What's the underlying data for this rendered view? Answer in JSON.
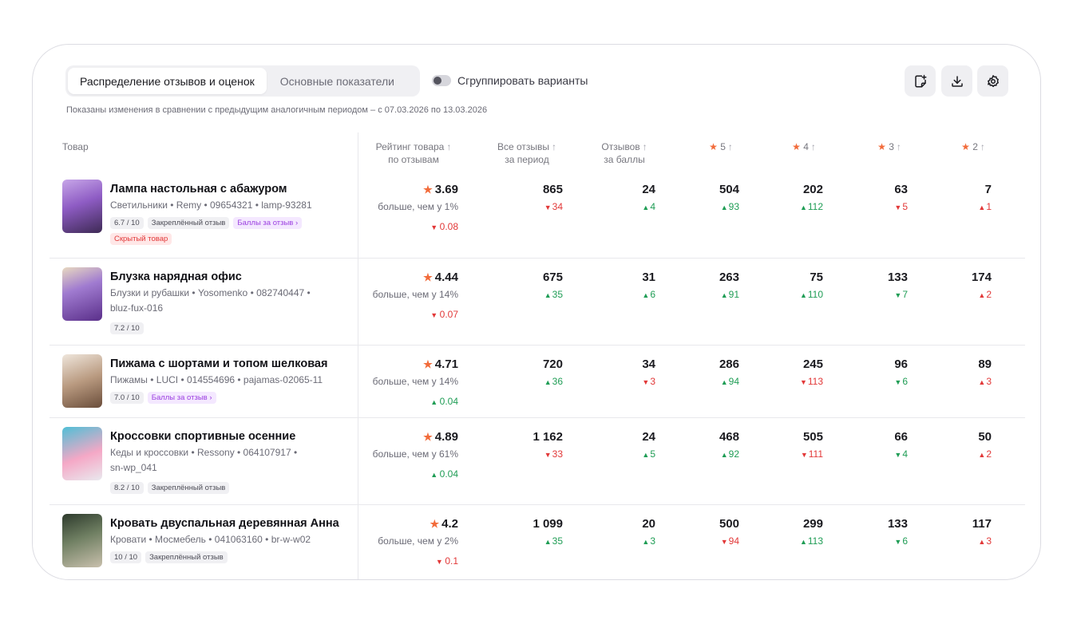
{
  "tabs": [
    {
      "label": "Распределение отзывов и оценок",
      "active": true
    },
    {
      "label": "Основные показатели",
      "active": false
    }
  ],
  "toggle": {
    "label": "Сгруппировать варианты",
    "on": false
  },
  "toolbar_icons": [
    "sticker-add-icon",
    "download-icon",
    "settings-gear-icon"
  ],
  "note": "Показаны изменения в сравнении с предыдущим аналогичным периодом – с 07.03.2026 по 13.03.2026",
  "columns": {
    "product": "Товар",
    "rating_l1": "Рейтинг товара",
    "rating_l2": "по отзывам",
    "all_l1": "Все отзывы",
    "all_l2": "за период",
    "points_l1": "Отзывов",
    "points_l2": "за баллы",
    "s5": "5",
    "s4": "4",
    "s3": "3",
    "s2": "2"
  },
  "colors": {
    "accent_star": "#f26b3a",
    "up": "#1f9d55",
    "down": "#e23838",
    "purple_chip": "#9b3fe0"
  },
  "rows": [
    {
      "name": "Лампа настольная с абажуром",
      "meta1": "Светильники • Remy • 09654321 • lamp-93281",
      "meta2": "",
      "chips": [
        {
          "text": "6.7 / 10",
          "kind": "grey"
        },
        {
          "text": "Закреплённый отзыв",
          "kind": "grey"
        },
        {
          "text": "Баллы за отзыв ›",
          "kind": "purple"
        }
      ],
      "chips2": [
        {
          "text": "Скрытый товар",
          "kind": "red"
        }
      ],
      "rating": "3.69",
      "compare": "больше, чем у 1%",
      "rating_delta": {
        "dir": "down",
        "value": "0.08"
      },
      "all": {
        "value": "865",
        "dir": "down",
        "delta": "34"
      },
      "points": {
        "value": "24",
        "dir": "up",
        "delta": "4"
      },
      "s5": {
        "value": "504",
        "dir": "up",
        "delta": "93"
      },
      "s4": {
        "value": "202",
        "dir": "up",
        "delta": "112"
      },
      "s3": {
        "value": "63",
        "dir": "down",
        "delta": "5"
      },
      "s2": {
        "value": "7",
        "dir": "up_red",
        "delta": "1"
      }
    },
    {
      "name": "Блузка нарядная офис",
      "meta1": "Блузки и рубашки • Yosomenko • 082740447 •",
      "meta2": "bluz-fux-016",
      "chips": [
        {
          "text": "7.2 / 10",
          "kind": "grey"
        }
      ],
      "chips2": [],
      "rating": "4.44",
      "compare": "больше, чем у 14%",
      "rating_delta": {
        "dir": "down",
        "value": "0.07"
      },
      "all": {
        "value": "675",
        "dir": "up",
        "delta": "35"
      },
      "points": {
        "value": "31",
        "dir": "up",
        "delta": "6"
      },
      "s5": {
        "value": "263",
        "dir": "up",
        "delta": "91"
      },
      "s4": {
        "value": "75",
        "dir": "up",
        "delta": "110"
      },
      "s3": {
        "value": "133",
        "dir": "down_green",
        "delta": "7"
      },
      "s2": {
        "value": "174",
        "dir": "up_red",
        "delta": "2"
      }
    },
    {
      "name": "Пижама с шортами и топом шелковая",
      "meta1": "Пижамы • LUCI • 014554696 • pajamas-02065-11",
      "meta2": "",
      "chips": [
        {
          "text": "7.0 / 10",
          "kind": "grey"
        },
        {
          "text": "Баллы за отзыв ›",
          "kind": "purple"
        }
      ],
      "chips2": [],
      "rating": "4.71",
      "compare": "больше, чем у 14%",
      "rating_delta": {
        "dir": "up",
        "value": "0.04"
      },
      "all": {
        "value": "720",
        "dir": "up",
        "delta": "36"
      },
      "points": {
        "value": "34",
        "dir": "down",
        "delta": "3"
      },
      "s5": {
        "value": "286",
        "dir": "up",
        "delta": "94"
      },
      "s4": {
        "value": "245",
        "dir": "down",
        "delta": "113"
      },
      "s3": {
        "value": "96",
        "dir": "down_green",
        "delta": "6"
      },
      "s2": {
        "value": "89",
        "dir": "up_red",
        "delta": "3"
      }
    },
    {
      "name": "Кроссовки спортивные осенние",
      "meta1": "Кеды и кроссовки • Ressony • 064107917 •",
      "meta2": "sn-wp_041",
      "chips": [
        {
          "text": "8.2 / 10",
          "kind": "grey"
        },
        {
          "text": "Закреплённый отзыв",
          "kind": "grey"
        }
      ],
      "chips2": [],
      "rating": "4.89",
      "compare": "больше, чем у 61%",
      "rating_delta": {
        "dir": "up",
        "value": "0.04"
      },
      "all": {
        "value": "1 162",
        "dir": "down",
        "delta": "33"
      },
      "points": {
        "value": "24",
        "dir": "up",
        "delta": "5"
      },
      "s5": {
        "value": "468",
        "dir": "up",
        "delta": "92"
      },
      "s4": {
        "value": "505",
        "dir": "down",
        "delta": "111"
      },
      "s3": {
        "value": "66",
        "dir": "down_green",
        "delta": "4"
      },
      "s2": {
        "value": "50",
        "dir": "up_red",
        "delta": "2"
      }
    },
    {
      "name": "Кровать двуспальная деревянная Анна",
      "meta1": "Кровати • Мосмебель • 041063160 • br-w-w02",
      "meta2": "",
      "chips": [
        {
          "text": "10 / 10",
          "kind": "grey"
        },
        {
          "text": "Закреплённый отзыв",
          "kind": "grey"
        }
      ],
      "chips2": [],
      "rating": "4.2",
      "compare": "больше, чем у 2%",
      "rating_delta": {
        "dir": "down",
        "value": "0.1"
      },
      "all": {
        "value": "1 099",
        "dir": "up",
        "delta": "35"
      },
      "points": {
        "value": "20",
        "dir": "up",
        "delta": "3"
      },
      "s5": {
        "value": "500",
        "dir": "down",
        "delta": "94"
      },
      "s4": {
        "value": "299",
        "dir": "up",
        "delta": "113"
      },
      "s3": {
        "value": "133",
        "dir": "down_green",
        "delta": "6"
      },
      "s2": {
        "value": "117",
        "dir": "up_red",
        "delta": "3"
      }
    }
  ]
}
